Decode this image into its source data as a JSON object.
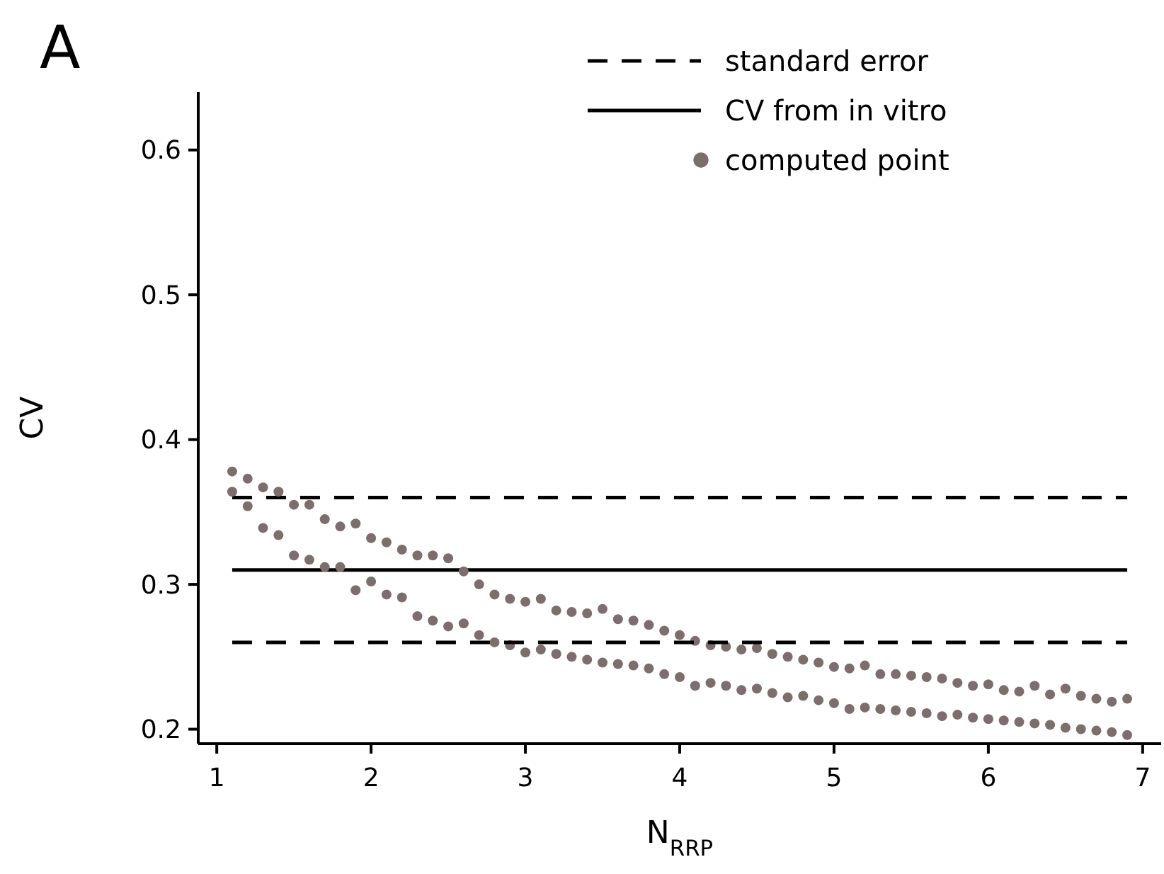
{
  "chart_data": {
    "type": "scatter",
    "xlabel": "N$_{RRP}$",
    "ylabel": "CV",
    "annotations": [
      "A"
    ],
    "xlim": [
      0.88,
      7.12
    ],
    "ylim": [
      0.19,
      0.64
    ],
    "xticks": [
      1,
      2,
      3,
      4,
      5,
      6,
      7
    ],
    "yticks": [
      0.2,
      0.3,
      0.4,
      0.5,
      0.6
    ],
    "grid": false,
    "legend": "top right",
    "series": [
      {
        "name": "standard error",
        "type": "line",
        "color": "#000000",
        "line_style": "dashed",
        "marker": "none",
        "x": [
          1.1,
          6.9
        ],
        "values": [
          0.36,
          0.36
        ]
      },
      {
        "name": "CV from in vitro",
        "type": "line",
        "color": "#000000",
        "line_style": "solid",
        "marker": "none",
        "x": [
          1.1,
          6.9
        ],
        "values": [
          0.31,
          0.31
        ]
      },
      {
        "name": "computed point",
        "color": "#7d6e6e",
        "marker": "circle",
        "x": [
          1.1,
          1.1,
          1.2,
          1.2,
          1.3,
          1.3,
          1.4,
          1.4,
          1.5,
          1.5,
          1.6,
          1.6,
          1.7,
          1.7,
          1.8,
          1.8,
          1.9,
          1.9,
          2.0,
          2.0,
          2.1,
          2.1,
          2.2,
          2.2,
          2.3,
          2.3,
          2.4,
          2.4,
          2.5,
          2.5,
          2.6,
          2.6,
          2.7,
          2.7,
          2.8,
          2.8,
          2.9,
          2.9,
          3.0,
          3.0,
          3.1,
          3.1,
          3.2,
          3.2,
          3.3,
          3.3,
          3.4,
          3.4,
          3.5,
          3.5,
          3.6,
          3.6,
          3.7,
          3.7,
          3.8,
          3.8,
          3.9,
          3.9,
          4.0,
          4.0,
          4.1,
          4.1,
          4.2,
          4.2,
          4.3,
          4.3,
          4.4,
          4.4,
          4.5,
          4.5,
          4.6,
          4.6,
          4.7,
          4.7,
          4.8,
          4.8,
          4.9,
          4.9,
          5.0,
          5.0,
          5.1,
          5.1,
          5.2,
          5.2,
          5.3,
          5.3,
          5.4,
          5.4,
          5.5,
          5.5,
          5.6,
          5.6,
          5.7,
          5.7,
          5.8,
          5.8,
          5.9,
          5.9,
          6.0,
          6.0,
          6.1,
          6.1,
          6.2,
          6.2,
          6.3,
          6.3,
          6.4,
          6.4,
          6.5,
          6.5,
          6.6,
          6.6,
          6.7,
          6.7,
          6.8,
          6.8,
          6.9,
          6.9
        ],
        "values": [
          0.378,
          0.364,
          0.373,
          0.354,
          0.367,
          0.339,
          0.364,
          0.334,
          0.355,
          0.32,
          0.355,
          0.317,
          0.345,
          0.312,
          0.34,
          0.312,
          0.342,
          0.296,
          0.332,
          0.302,
          0.329,
          0.293,
          0.324,
          0.291,
          0.32,
          0.278,
          0.32,
          0.275,
          0.318,
          0.271,
          0.309,
          0.273,
          0.3,
          0.265,
          0.293,
          0.26,
          0.29,
          0.258,
          0.288,
          0.253,
          0.29,
          0.255,
          0.282,
          0.252,
          0.281,
          0.25,
          0.28,
          0.248,
          0.283,
          0.246,
          0.276,
          0.245,
          0.275,
          0.244,
          0.272,
          0.242,
          0.268,
          0.238,
          0.265,
          0.236,
          0.261,
          0.23,
          0.258,
          0.232,
          0.257,
          0.23,
          0.255,
          0.227,
          0.256,
          0.228,
          0.252,
          0.225,
          0.25,
          0.222,
          0.248,
          0.223,
          0.246,
          0.22,
          0.243,
          0.218,
          0.242,
          0.214,
          0.244,
          0.215,
          0.238,
          0.214,
          0.238,
          0.213,
          0.237,
          0.212,
          0.236,
          0.211,
          0.235,
          0.209,
          0.232,
          0.21,
          0.23,
          0.208,
          0.231,
          0.207,
          0.227,
          0.206,
          0.226,
          0.205,
          0.23,
          0.204,
          0.224,
          0.203,
          0.228,
          0.201,
          0.223,
          0.2,
          0.221,
          0.199,
          0.219,
          0.198,
          0.221,
          0.196
        ]
      },
      {
        "type": "line",
        "color": "#000000",
        "line_style": "dashed",
        "marker": "none",
        "x": [
          1.1,
          6.9
        ],
        "values": [
          0.26,
          0.26
        ]
      }
    ]
  }
}
